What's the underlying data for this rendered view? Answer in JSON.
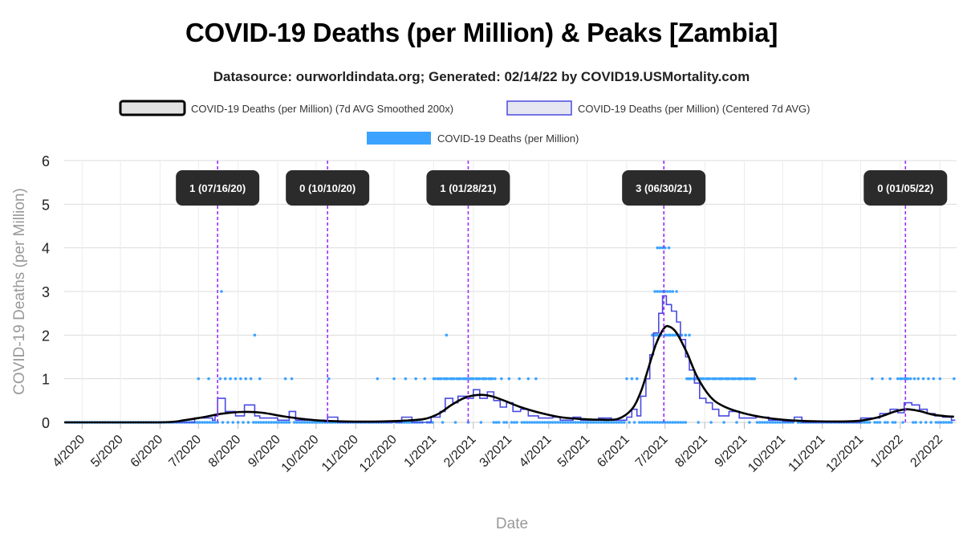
{
  "chart_data": {
    "type": "line",
    "title": "COVID-19 Deaths (per Million) & Peaks [Zambia]",
    "subtitle": "Datasource: ourworldindata.org; Generated: 02/14/22 by COVID19.USMortality.com",
    "xlabel": "Date",
    "ylabel": "COVID-19 Deaths (per Million)",
    "ylim": [
      0,
      6
    ],
    "yticks": [
      "0",
      "1",
      "2",
      "3",
      "4",
      "5",
      "6"
    ],
    "xlim": [
      "2020-03-18",
      "2022-02-14"
    ],
    "xticks": [
      {
        "date": "2020-04-01",
        "label": "4/2020"
      },
      {
        "date": "2020-05-01",
        "label": "5/2020"
      },
      {
        "date": "2020-06-01",
        "label": "6/2020"
      },
      {
        "date": "2020-07-01",
        "label": "7/2020"
      },
      {
        "date": "2020-08-01",
        "label": "8/2020"
      },
      {
        "date": "2020-09-01",
        "label": "9/2020"
      },
      {
        "date": "2020-10-01",
        "label": "10/2020"
      },
      {
        "date": "2020-11-01",
        "label": "11/2020"
      },
      {
        "date": "2020-12-01",
        "label": "12/2020"
      },
      {
        "date": "2021-01-01",
        "label": "1/2021"
      },
      {
        "date": "2021-02-01",
        "label": "2/2021"
      },
      {
        "date": "2021-03-01",
        "label": "3/2021"
      },
      {
        "date": "2021-04-01",
        "label": "4/2021"
      },
      {
        "date": "2021-05-01",
        "label": "5/2021"
      },
      {
        "date": "2021-06-01",
        "label": "6/2021"
      },
      {
        "date": "2021-07-01",
        "label": "7/2021"
      },
      {
        "date": "2021-08-01",
        "label": "8/2021"
      },
      {
        "date": "2021-09-01",
        "label": "9/2021"
      },
      {
        "date": "2021-10-01",
        "label": "10/2021"
      },
      {
        "date": "2021-11-01",
        "label": "11/2021"
      },
      {
        "date": "2021-12-01",
        "label": "12/2021"
      },
      {
        "date": "2022-01-01",
        "label": "1/2022"
      },
      {
        "date": "2022-02-01",
        "label": "2/2022"
      }
    ],
    "grid": true,
    "legend_position": "top",
    "series": [
      {
        "name": "COVID-19 Deaths (per Million) (7d AVG Smoothed 200x)",
        "kind": "line",
        "color": "#000000",
        "points": [
          [
            "2020-03-18",
            0
          ],
          [
            "2020-06-01",
            0.0
          ],
          [
            "2020-06-20",
            0.05
          ],
          [
            "2020-07-05",
            0.12
          ],
          [
            "2020-07-20",
            0.2
          ],
          [
            "2020-08-05",
            0.24
          ],
          [
            "2020-08-20",
            0.22
          ],
          [
            "2020-09-05",
            0.14
          ],
          [
            "2020-09-20",
            0.08
          ],
          [
            "2020-10-05",
            0.04
          ],
          [
            "2020-10-25",
            0.02
          ],
          [
            "2020-11-20",
            0.02
          ],
          [
            "2020-12-10",
            0.04
          ],
          [
            "2020-12-25",
            0.08
          ],
          [
            "2021-01-05",
            0.2
          ],
          [
            "2021-01-15",
            0.4
          ],
          [
            "2021-01-25",
            0.56
          ],
          [
            "2021-02-05",
            0.63
          ],
          [
            "2021-02-15",
            0.6
          ],
          [
            "2021-02-25",
            0.5
          ],
          [
            "2021-03-10",
            0.35
          ],
          [
            "2021-03-25",
            0.22
          ],
          [
            "2021-04-10",
            0.12
          ],
          [
            "2021-04-25",
            0.08
          ],
          [
            "2021-05-10",
            0.06
          ],
          [
            "2021-05-25",
            0.08
          ],
          [
            "2021-06-05",
            0.3
          ],
          [
            "2021-06-12",
            0.7
          ],
          [
            "2021-06-18",
            1.25
          ],
          [
            "2021-06-24",
            1.8
          ],
          [
            "2021-06-30",
            2.15
          ],
          [
            "2021-07-04",
            2.2
          ],
          [
            "2021-07-10",
            2.05
          ],
          [
            "2021-07-18",
            1.6
          ],
          [
            "2021-07-26",
            1.05
          ],
          [
            "2021-08-05",
            0.6
          ],
          [
            "2021-08-15",
            0.38
          ],
          [
            "2021-08-30",
            0.22
          ],
          [
            "2021-09-15",
            0.12
          ],
          [
            "2021-10-01",
            0.06
          ],
          [
            "2021-10-20",
            0.03
          ],
          [
            "2021-11-15",
            0.02
          ],
          [
            "2021-12-01",
            0.04
          ],
          [
            "2021-12-15",
            0.12
          ],
          [
            "2021-12-28",
            0.25
          ],
          [
            "2022-01-06",
            0.3
          ],
          [
            "2022-01-16",
            0.26
          ],
          [
            "2022-01-26",
            0.18
          ],
          [
            "2022-02-06",
            0.14
          ],
          [
            "2022-02-12",
            0.13
          ]
        ]
      },
      {
        "name": "COVID-19 Deaths (per Million) (Centered 7d AVG)",
        "kind": "step",
        "color": "#4a4ae0",
        "points": [
          [
            "2020-03-20",
            0
          ],
          [
            "2020-06-25",
            0
          ],
          [
            "2020-06-28",
            0.1
          ],
          [
            "2020-07-08",
            0.1
          ],
          [
            "2020-07-12",
            0.05
          ],
          [
            "2020-07-14",
            0.15
          ],
          [
            "2020-07-16",
            0.55
          ],
          [
            "2020-07-20",
            0.55
          ],
          [
            "2020-07-22",
            0.25
          ],
          [
            "2020-07-28",
            0.25
          ],
          [
            "2020-07-30",
            0.15
          ],
          [
            "2020-08-04",
            0.15
          ],
          [
            "2020-08-06",
            0.4
          ],
          [
            "2020-08-12",
            0.4
          ],
          [
            "2020-08-14",
            0.15
          ],
          [
            "2020-08-18",
            0.1
          ],
          [
            "2020-08-30",
            0.1
          ],
          [
            "2020-09-01",
            0.05
          ],
          [
            "2020-09-08",
            0.05
          ],
          [
            "2020-09-10",
            0.25
          ],
          [
            "2020-09-13",
            0.25
          ],
          [
            "2020-09-15",
            0.05
          ],
          [
            "2020-10-08",
            0.02
          ],
          [
            "2020-10-10",
            0.12
          ],
          [
            "2020-10-16",
            0.12
          ],
          [
            "2020-10-18",
            0
          ],
          [
            "2020-12-05",
            0
          ],
          [
            "2020-12-07",
            0.12
          ],
          [
            "2020-12-13",
            0.12
          ],
          [
            "2020-12-15",
            0
          ],
          [
            "2020-12-28",
            0
          ],
          [
            "2020-12-30",
            0.12
          ],
          [
            "2021-01-06",
            0.25
          ],
          [
            "2021-01-10",
            0.55
          ],
          [
            "2021-01-16",
            0.45
          ],
          [
            "2021-01-20",
            0.6
          ],
          [
            "2021-01-27",
            0.55
          ],
          [
            "2021-02-01",
            0.75
          ],
          [
            "2021-02-06",
            0.55
          ],
          [
            "2021-02-12",
            0.7
          ],
          [
            "2021-02-17",
            0.5
          ],
          [
            "2021-02-22",
            0.35
          ],
          [
            "2021-02-27",
            0.45
          ],
          [
            "2021-03-04",
            0.25
          ],
          [
            "2021-03-10",
            0.3
          ],
          [
            "2021-03-16",
            0.15
          ],
          [
            "2021-03-24",
            0.1
          ],
          [
            "2021-04-04",
            0.12
          ],
          [
            "2021-04-10",
            0.05
          ],
          [
            "2021-04-20",
            0.12
          ],
          [
            "2021-04-26",
            0.05
          ],
          [
            "2021-05-10",
            0.1
          ],
          [
            "2021-05-20",
            0.05
          ],
          [
            "2021-06-01",
            0.12
          ],
          [
            "2021-06-05",
            0.3
          ],
          [
            "2021-06-09",
            0.15
          ],
          [
            "2021-06-12",
            0.6
          ],
          [
            "2021-06-16",
            1.0
          ],
          [
            "2021-06-19",
            1.55
          ],
          [
            "2021-06-22",
            2.05
          ],
          [
            "2021-06-26",
            2.5
          ],
          [
            "2021-06-29",
            2.9
          ],
          [
            "2021-07-02",
            2.7
          ],
          [
            "2021-07-06",
            2.55
          ],
          [
            "2021-07-10",
            2.3
          ],
          [
            "2021-07-13",
            1.9
          ],
          [
            "2021-07-17",
            1.5
          ],
          [
            "2021-07-20",
            1.2
          ],
          [
            "2021-07-24",
            0.9
          ],
          [
            "2021-07-28",
            0.55
          ],
          [
            "2021-08-02",
            0.45
          ],
          [
            "2021-08-07",
            0.3
          ],
          [
            "2021-08-12",
            0.15
          ],
          [
            "2021-08-20",
            0.25
          ],
          [
            "2021-08-28",
            0.1
          ],
          [
            "2021-09-10",
            0.12
          ],
          [
            "2021-09-20",
            0.05
          ],
          [
            "2021-10-01",
            0.02
          ],
          [
            "2021-10-10",
            0.12
          ],
          [
            "2021-10-16",
            0
          ],
          [
            "2021-11-25",
            0
          ],
          [
            "2021-12-01",
            0.1
          ],
          [
            "2021-12-10",
            0.1
          ],
          [
            "2021-12-16",
            0.2
          ],
          [
            "2021-12-24",
            0.3
          ],
          [
            "2021-12-30",
            0.22
          ],
          [
            "2022-01-04",
            0.45
          ],
          [
            "2022-01-10",
            0.4
          ],
          [
            "2022-01-16",
            0.3
          ],
          [
            "2022-01-22",
            0.2
          ],
          [
            "2022-01-28",
            0.15
          ],
          [
            "2022-02-03",
            0.12
          ],
          [
            "2022-02-10",
            0.05
          ],
          [
            "2022-02-13",
            0.05
          ]
        ]
      },
      {
        "name": "COVID-19 Deaths (per Million)",
        "kind": "scatter",
        "color": "#3ba3ff",
        "ones": [
          "2020-07-01",
          "2020-07-09",
          "2020-07-18",
          "2020-07-22",
          "2020-07-26",
          "2020-07-30",
          "2020-08-03",
          "2020-08-07",
          "2020-08-11",
          "2020-08-18",
          "2020-09-07",
          "2020-09-12",
          "2020-10-11",
          "2020-11-18",
          "2020-12-01",
          "2020-12-10",
          "2020-12-18",
          "2020-12-25",
          "2021-02-23",
          "2021-03-01",
          "2021-03-09",
          "2021-03-16",
          "2021-03-22",
          "2021-06-01",
          "2021-06-05",
          "2021-06-09",
          "2021-10-11",
          "2021-12-10",
          "2021-12-18",
          "2021-12-24",
          "2021-12-30",
          "2022-01-12",
          "2022-01-15",
          "2022-01-19",
          "2022-01-23",
          "2022-01-27",
          "2022-02-01",
          "2022-02-12"
        ],
        "one_ranges": [
          [
            "2021-01-01",
            "2021-02-18"
          ],
          [
            "2021-07-18",
            "2021-08-20"
          ],
          [
            "2021-08-22",
            "2021-09-10"
          ],
          [
            "2022-01-01",
            "2022-01-09"
          ]
        ],
        "twos": [
          "2020-08-14",
          "2021-01-11",
          "2021-06-21",
          "2021-06-22",
          "2021-06-23",
          "2021-06-24",
          "2021-06-25",
          "2021-06-27",
          "2021-06-28",
          "2021-07-01",
          "2021-07-02",
          "2021-07-04",
          "2021-07-05",
          "2021-07-07",
          "2021-07-09",
          "2021-07-11",
          "2021-07-12",
          "2021-07-14",
          "2021-07-17",
          "2021-07-20"
        ],
        "threes": [
          "2020-07-19",
          "2021-06-23",
          "2021-06-25",
          "2021-06-27",
          "2021-06-29",
          "2021-07-01",
          "2021-07-03",
          "2021-07-05",
          "2021-07-07",
          "2021-07-10"
        ],
        "fours": [
          "2021-06-25",
          "2021-06-27",
          "2021-06-29",
          "2021-07-01",
          "2021-07-04"
        ]
      }
    ],
    "peaks": [
      {
        "date": "2020-07-16",
        "label": "1 (07/16/20)"
      },
      {
        "date": "2020-10-10",
        "label": "0 (10/10/20)"
      },
      {
        "date": "2021-01-28",
        "label": "1 (01/28/21)"
      },
      {
        "date": "2021-06-30",
        "label": "3 (06/30/21)"
      },
      {
        "date": "2022-01-05",
        "label": "0 (01/05/22)"
      }
    ],
    "colors": {
      "smoothed": "#000000",
      "centered": "#4a4ae0",
      "daily": "#3ba3ff",
      "peak_line": "#9b30ff",
      "peak_box": "#2b2b2b",
      "grid": "#dcdcdc"
    }
  }
}
